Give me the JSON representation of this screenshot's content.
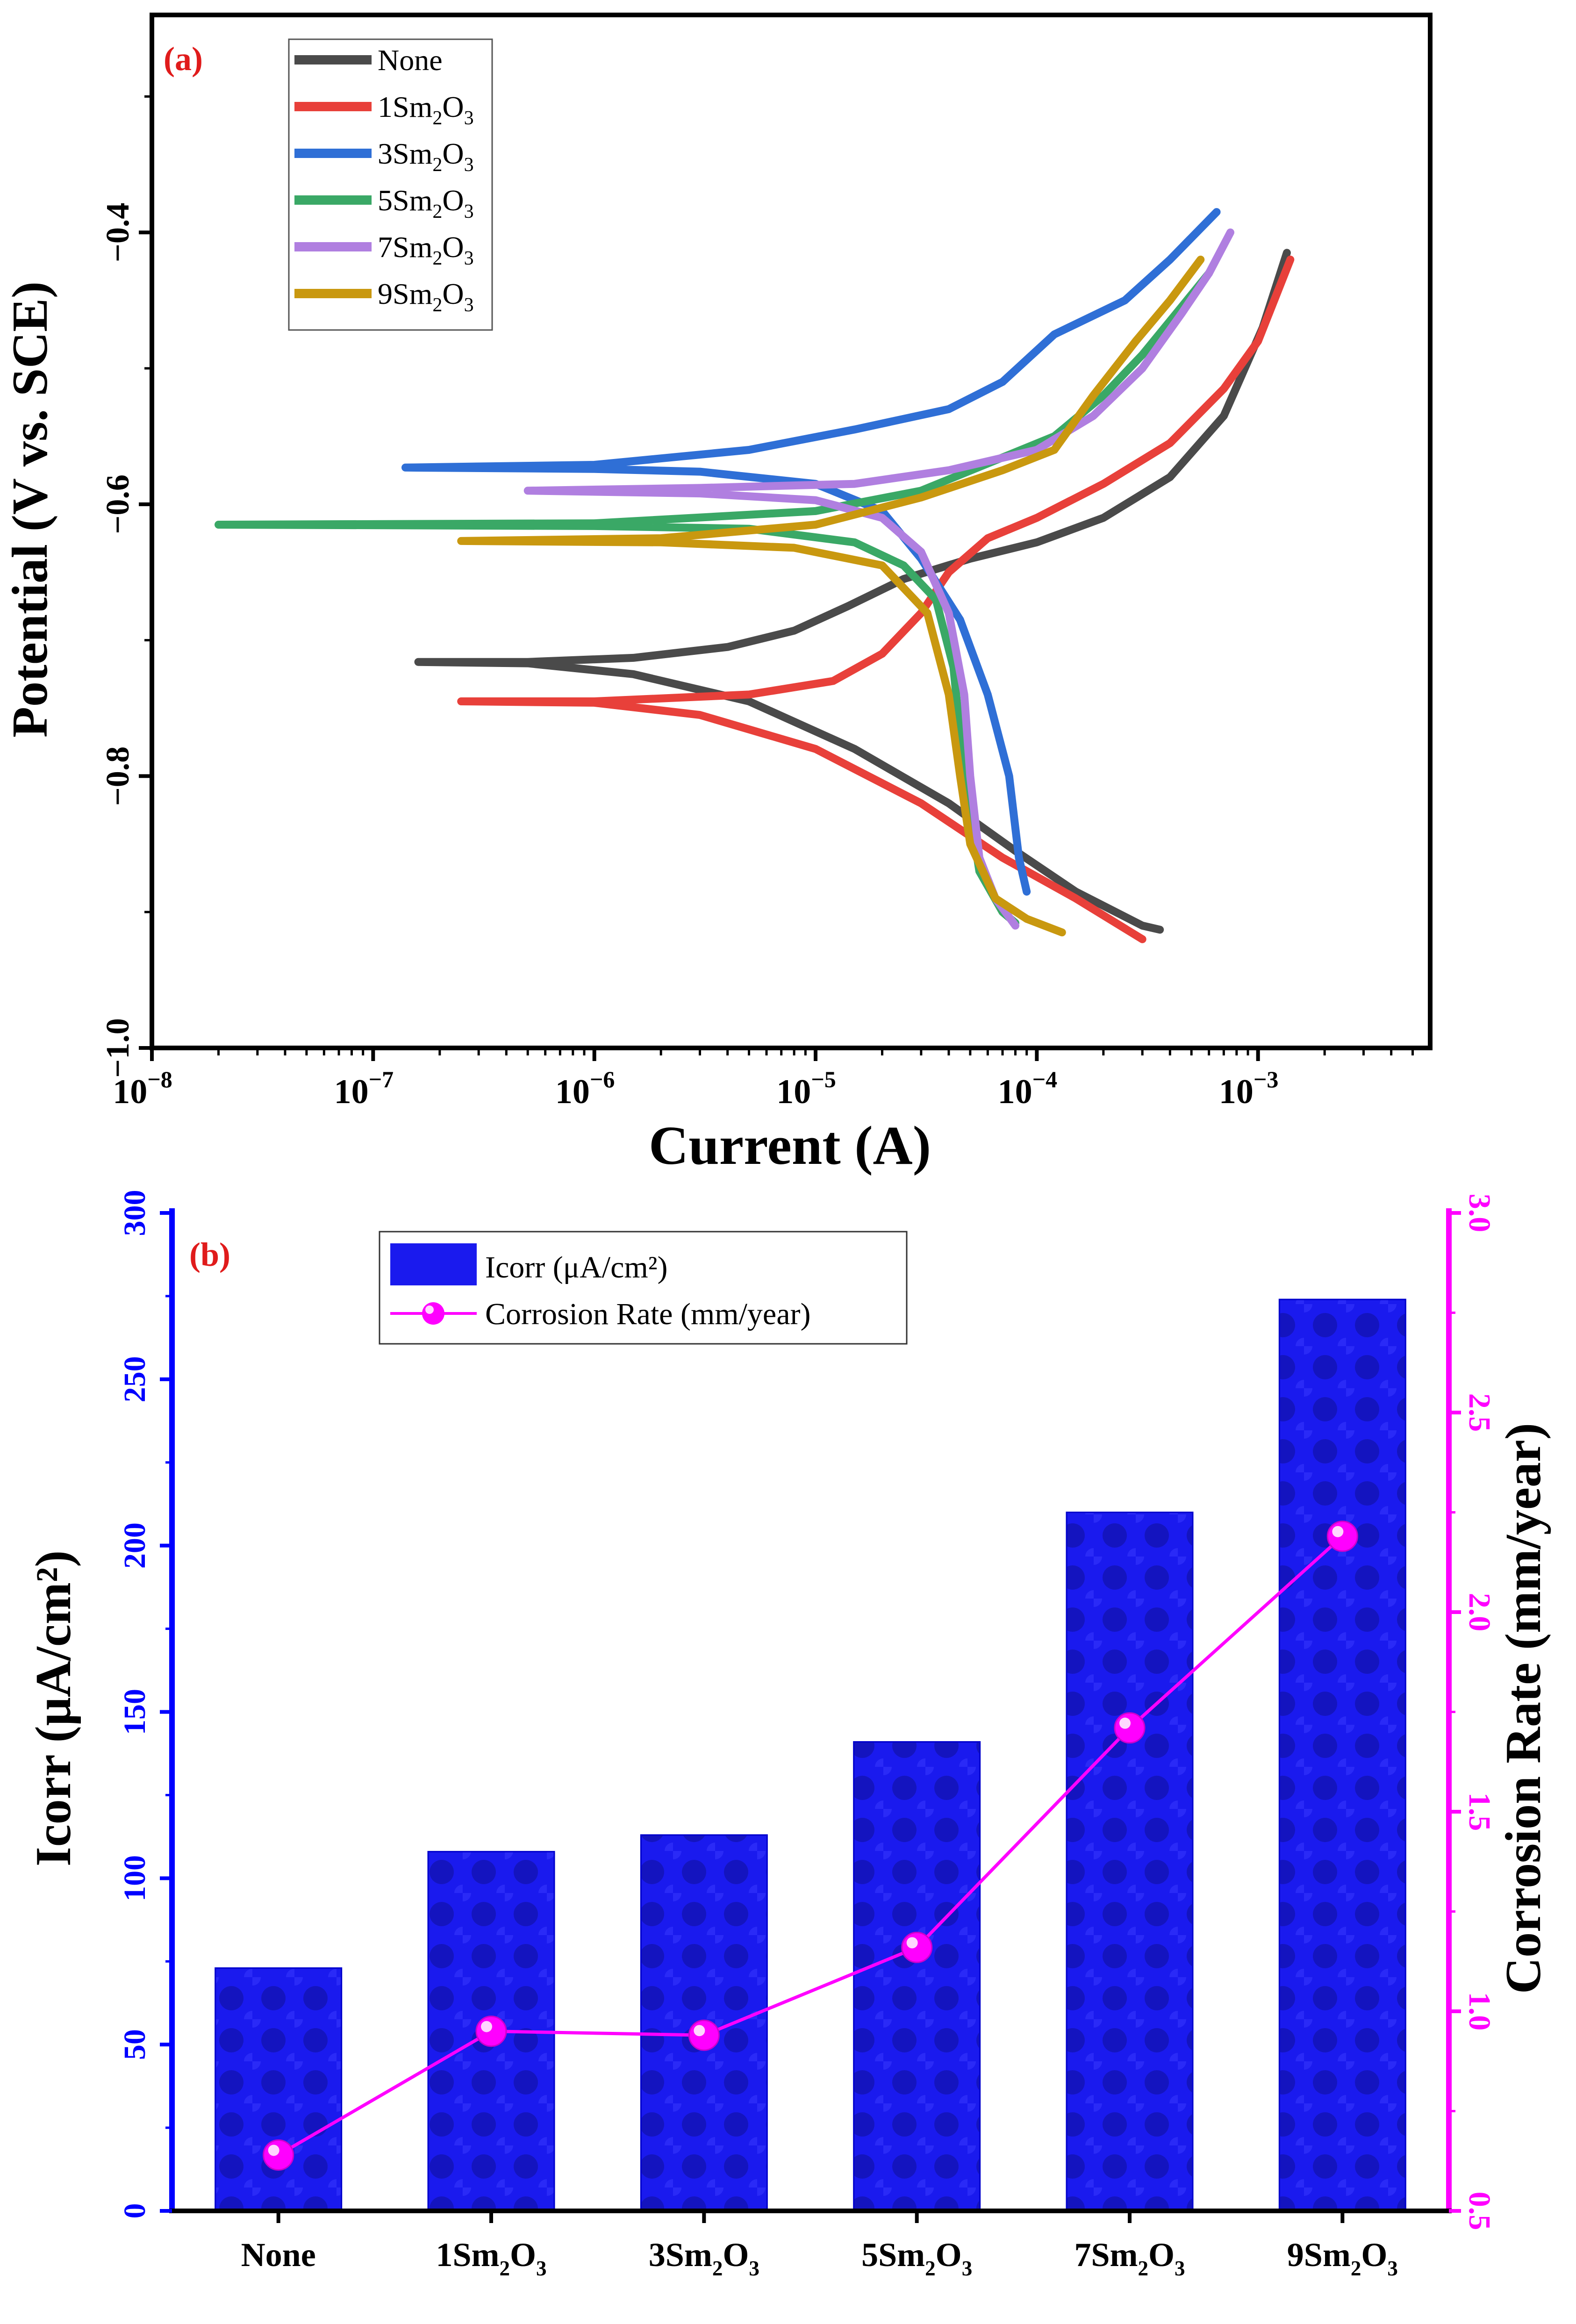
{
  "chart_data": [
    {
      "type": "line",
      "panel_label": "(a)",
      "xlabel": "Current (A)",
      "ylabel": "Potential (V vs. SCE)",
      "xscale": "log",
      "xlim": [
        1e-08,
        0.006
      ],
      "ylim": [
        -1.0,
        -0.24
      ],
      "x_ticks": [
        {
          "value": 1e-08,
          "base": "10",
          "exp": "−8"
        },
        {
          "value": 1e-07,
          "base": "10",
          "exp": "−7"
        },
        {
          "value": 1e-06,
          "base": "10",
          "exp": "−6"
        },
        {
          "value": 1e-05,
          "base": "10",
          "exp": "−5"
        },
        {
          "value": 0.0001,
          "base": "10",
          "exp": "−4"
        },
        {
          "value": 0.001,
          "base": "10",
          "exp": "−3"
        }
      ],
      "y_ticks": [
        {
          "value": -1.0,
          "label": "−1.0"
        },
        {
          "value": -0.8,
          "label": "−0.8"
        },
        {
          "value": -0.6,
          "label": "−0.6"
        },
        {
          "value": -0.4,
          "label": "−0.4"
        }
      ],
      "legend_position": "top-left",
      "series": [
        {
          "name": "None",
          "pre": "",
          "sub1": "",
          "mid": "",
          "sub2": "",
          "color": "#4a4a4a",
          "points": [
            [
              0.00036,
              -0.913
            ],
            [
              0.0003,
              -0.91
            ],
            [
              0.00015,
              -0.885
            ],
            [
              8e-05,
              -0.855
            ],
            [
              4e-05,
              -0.82
            ],
            [
              1.5e-05,
              -0.78
            ],
            [
              5e-06,
              -0.745
            ],
            [
              1.5e-06,
              -0.725
            ],
            [
              5e-07,
              -0.717
            ],
            [
              1.6e-07,
              -0.716
            ],
            [
              5e-07,
              -0.716
            ],
            [
              1.5e-06,
              -0.713
            ],
            [
              4e-06,
              -0.705
            ],
            [
              8e-06,
              -0.693
            ],
            [
              1.4e-05,
              -0.675
            ],
            [
              2.5e-05,
              -0.655
            ],
            [
              5e-05,
              -0.64
            ],
            [
              0.0001,
              -0.628
            ],
            [
              0.0002,
              -0.61
            ],
            [
              0.0004,
              -0.58
            ],
            [
              0.0007,
              -0.535
            ],
            [
              0.00105,
              -0.47
            ],
            [
              0.00135,
              -0.415
            ]
          ]
        },
        {
          "name": "1Sm2O3",
          "pre": "1Sm",
          "sub1": "2",
          "mid": "O",
          "sub2": "3",
          "color": "#e8403a",
          "points": [
            [
              0.0003,
              -0.92
            ],
            [
              0.00015,
              -0.89
            ],
            [
              7e-05,
              -0.86
            ],
            [
              3e-05,
              -0.82
            ],
            [
              1e-05,
              -0.78
            ],
            [
              3e-06,
              -0.755
            ],
            [
              1e-06,
              -0.746
            ],
            [
              2.5e-07,
              -0.745
            ],
            [
              1e-06,
              -0.745
            ],
            [
              5e-06,
              -0.74
            ],
            [
              1.2e-05,
              -0.73
            ],
            [
              2e-05,
              -0.71
            ],
            [
              3e-05,
              -0.68
            ],
            [
              4e-05,
              -0.65
            ],
            [
              6e-05,
              -0.625
            ],
            [
              0.0001,
              -0.61
            ],
            [
              0.0002,
              -0.585
            ],
            [
              0.0004,
              -0.555
            ],
            [
              0.0007,
              -0.515
            ],
            [
              0.001,
              -0.48
            ],
            [
              0.0014,
              -0.42
            ]
          ]
        },
        {
          "name": "3Sm2O3",
          "pre": "3Sm",
          "sub1": "2",
          "mid": "O",
          "sub2": "3",
          "color": "#2f6fd6",
          "points": [
            [
              9e-05,
              -0.885
            ],
            [
              8.3e-05,
              -0.86
            ],
            [
              7.5e-05,
              -0.8
            ],
            [
              6e-05,
              -0.74
            ],
            [
              4.5e-05,
              -0.685
            ],
            [
              3e-05,
              -0.64
            ],
            [
              2e-05,
              -0.605
            ],
            [
              1e-05,
              -0.585
            ],
            [
              3e-06,
              -0.576
            ],
            [
              1e-06,
              -0.574
            ],
            [
              1.4e-07,
              -0.573
            ],
            [
              1e-06,
              -0.571
            ],
            [
              5e-06,
              -0.56
            ],
            [
              1.5e-05,
              -0.545
            ],
            [
              4e-05,
              -0.53
            ],
            [
              7e-05,
              -0.51
            ],
            [
              0.00012,
              -0.475
            ],
            [
              0.00025,
              -0.45
            ],
            [
              0.0004,
              -0.42
            ],
            [
              0.00065,
              -0.385
            ]
          ]
        },
        {
          "name": "5Sm2O3",
          "pre": "5Sm",
          "sub1": "2",
          "mid": "O",
          "sub2": "3",
          "color": "#3aa866",
          "points": [
            [
              8e-05,
              -0.908
            ],
            [
              7e-05,
              -0.9
            ],
            [
              5.5e-05,
              -0.87
            ],
            [
              4.7e-05,
              -0.8
            ],
            [
              4.2e-05,
              -0.72
            ],
            [
              3.5e-05,
              -0.67
            ],
            [
              2.5e-05,
              -0.645
            ],
            [
              1.5e-05,
              -0.628
            ],
            [
              5e-06,
              -0.618
            ],
            [
              1e-06,
              -0.616
            ],
            [
              2e-08,
              -0.615
            ],
            [
              1e-06,
              -0.614
            ],
            [
              1e-05,
              -0.605
            ],
            [
              3e-05,
              -0.59
            ],
            [
              6e-05,
              -0.57
            ],
            [
              0.00012,
              -0.55
            ],
            [
              0.0002,
              -0.52
            ],
            [
              0.0003,
              -0.49
            ],
            [
              0.00045,
              -0.455
            ],
            [
              0.0006,
              -0.43
            ]
          ]
        },
        {
          "name": "7Sm2O3",
          "pre": "7Sm",
          "sub1": "2",
          "mid": "O",
          "sub2": "3",
          "color": "#b07fe0",
          "points": [
            [
              8e-05,
              -0.91
            ],
            [
              6.5e-05,
              -0.89
            ],
            [
              5.5e-05,
              -0.86
            ],
            [
              5e-05,
              -0.8
            ],
            [
              4.7e-05,
              -0.74
            ],
            [
              4e-05,
              -0.68
            ],
            [
              3e-05,
              -0.635
            ],
            [
              2e-05,
              -0.61
            ],
            [
              1e-05,
              -0.597
            ],
            [
              3e-06,
              -0.592
            ],
            [
              5e-07,
              -0.59
            ],
            [
              3e-06,
              -0.588
            ],
            [
              1.5e-05,
              -0.585
            ],
            [
              4e-05,
              -0.575
            ],
            [
              0.0001,
              -0.56
            ],
            [
              0.00018,
              -0.535
            ],
            [
              0.0003,
              -0.5
            ],
            [
              0.00045,
              -0.46
            ],
            [
              0.0006,
              -0.43
            ],
            [
              0.00075,
              -0.4
            ]
          ]
        },
        {
          "name": "9Sm2O3",
          "pre": "9Sm",
          "sub1": "2",
          "mid": "O",
          "sub2": "3",
          "color": "#c9980f",
          "points": [
            [
              0.00013,
              -0.915
            ],
            [
              9e-05,
              -0.905
            ],
            [
              6.5e-05,
              -0.89
            ],
            [
              5e-05,
              -0.85
            ],
            [
              4.5e-05,
              -0.8
            ],
            [
              4e-05,
              -0.74
            ],
            [
              3.2e-05,
              -0.68
            ],
            [
              2e-05,
              -0.645
            ],
            [
              8e-06,
              -0.632
            ],
            [
              2e-06,
              -0.628
            ],
            [
              2.5e-07,
              -0.627
            ],
            [
              2e-06,
              -0.625
            ],
            [
              1e-05,
              -0.615
            ],
            [
              3e-05,
              -0.595
            ],
            [
              7e-05,
              -0.575
            ],
            [
              0.00012,
              -0.56
            ],
            [
              0.00018,
              -0.52
            ],
            [
              0.00028,
              -0.48
            ],
            [
              0.0004,
              -0.45
            ],
            [
              0.00055,
              -0.42
            ]
          ]
        }
      ]
    },
    {
      "type": "bar",
      "panel_label": "(b)",
      "categories": [
        {
          "pre": "None",
          "sub1": "",
          "mid": "",
          "sub2": ""
        },
        {
          "pre": "1Sm",
          "sub1": "2",
          "mid": "O",
          "sub2": "3"
        },
        {
          "pre": "3Sm",
          "sub1": "2",
          "mid": "O",
          "sub2": "3"
        },
        {
          "pre": "5Sm",
          "sub1": "2",
          "mid": "O",
          "sub2": "3"
        },
        {
          "pre": "7Sm",
          "sub1": "2",
          "mid": "O",
          "sub2": "3"
        },
        {
          "pre": "9Sm",
          "sub1": "2",
          "mid": "O",
          "sub2": "3"
        }
      ],
      "series": [
        {
          "name": "Icorr (μA/cm²)",
          "axis": "left",
          "kind": "bar",
          "color": "#1a1aee",
          "values": [
            73,
            108,
            113,
            141,
            210,
            274
          ]
        },
        {
          "name": "Corrosion Rate (mm/year)",
          "axis": "right",
          "kind": "line",
          "color": "#ff00ff",
          "values": [
            0.64,
            0.95,
            0.94,
            1.16,
            1.71,
            2.19
          ]
        }
      ],
      "ylabel": "Icorr (μA/cm²)",
      "y2label": "Corrosion Rate (mm/year)",
      "ylim": [
        0,
        300
      ],
      "y2lim": [
        0.5,
        3.0
      ],
      "y_ticks": [
        "0",
        "50",
        "100",
        "150",
        "200",
        "250",
        "300"
      ],
      "y2_ticks": [
        "0.5",
        "1.0",
        "1.5",
        "2.0",
        "2.5",
        "3.0"
      ],
      "legend_position": "top-left",
      "left_axis_color": "#0000ff",
      "right_axis_color": "#ff00ff"
    }
  ]
}
